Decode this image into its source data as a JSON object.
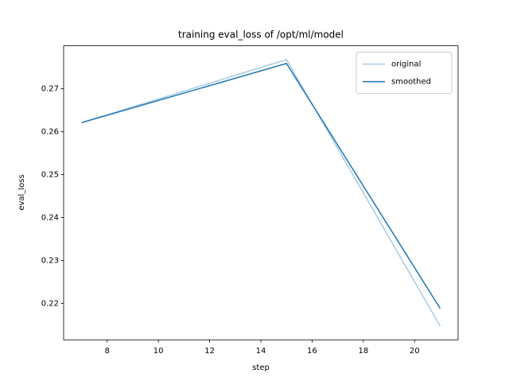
{
  "chart_data": {
    "type": "line",
    "title": "training eval_loss of /opt/ml/model",
    "x_label": "step",
    "y_label": "eval_loss",
    "x": [
      7,
      15,
      21
    ],
    "series": [
      {
        "name": "original",
        "color": "#a6cbe3",
        "values": [
          0.2621,
          0.2768,
          0.2147
        ]
      },
      {
        "name": "smoothed",
        "color": "#1f77b4",
        "values": [
          0.2621,
          0.2759,
          0.2188
        ]
      }
    ],
    "xlim": [
      6.3,
      21.7
    ],
    "xticks": [
      8,
      10,
      12,
      14,
      16,
      18,
      20
    ],
    "ylim": [
      0.2115,
      0.28
    ],
    "yticks": [
      {
        "value": 0.22,
        "label": "0.22"
      },
      {
        "value": 0.23,
        "label": "0.23"
      },
      {
        "value": 0.24,
        "label": "0.24"
      },
      {
        "value": 0.25,
        "label": "0.25"
      },
      {
        "value": 0.26,
        "label": "0.26"
      },
      {
        "value": 0.27,
        "label": "0.27"
      }
    ],
    "legend": "upper right",
    "grid": false
  }
}
